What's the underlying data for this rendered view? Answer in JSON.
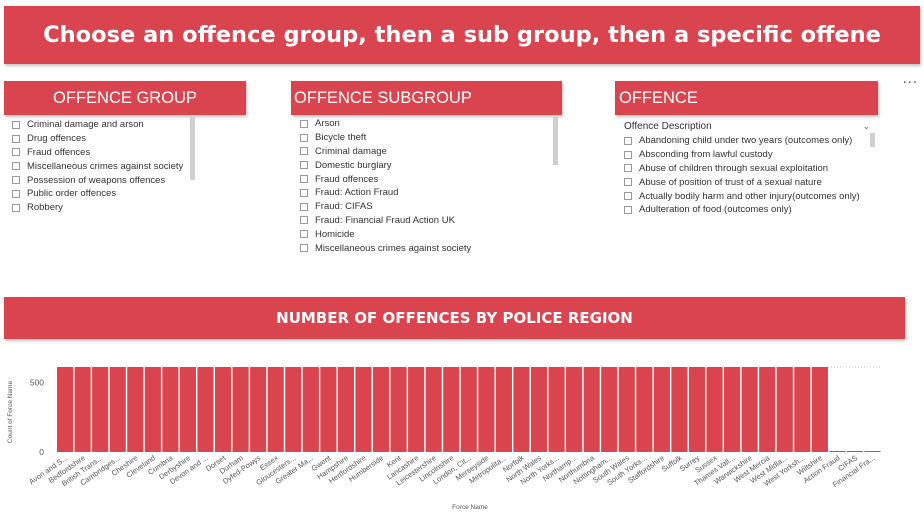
{
  "banner": {
    "title": "Choose an offence group, then a sub group, then a specific offene"
  },
  "more_options": "...",
  "offence_group": {
    "header": "OFFENCE GROUP",
    "items": [
      "Criminal damage and arson",
      "Drug offences",
      "Fraud offences",
      "Miscellaneous crimes against society",
      "Possession of weapons offences",
      "Public order offences",
      "Robbery"
    ]
  },
  "offence_subgroup": {
    "header": "OFFENCE SUBGROUP",
    "items": [
      "Arson",
      "Bicycle theft",
      "Criminal damage",
      "Domestic burglary",
      "Fraud offences",
      "Fraud: Action Fraud",
      "Fraud: CIFAS",
      "Fraud: Financial Fraud Action UK",
      "Homicide",
      "Miscellaneous crimes against society"
    ]
  },
  "offence": {
    "header": "OFFENCE",
    "dropdown_label": "Offence Description",
    "dropdown_icon": "chevron-down-icon",
    "items": [
      "Abandoning child under two years (outcomes only)",
      "Absconding from lawful custody",
      "Abuse of children through sexual exploitation",
      "Abuse of position of trust of a sexual nature",
      "Actually bodily harm and other injury(outcomes only)",
      "Adulteration of food (outcomes only)"
    ]
  },
  "colors": {
    "accent": "#d9444f",
    "bar": "#d9444f",
    "white": "#ffffff"
  },
  "chart_title": "NUMBER OF OFFENCES BY POLICE REGION",
  "chart_data": {
    "type": "bar",
    "title": "NUMBER OF OFFENCES BY POLICE REGION",
    "xlabel": "Force Name",
    "ylabel": "Count of Force Name",
    "ylim": [
      0,
      660
    ],
    "yticks": [
      0,
      500
    ],
    "categories": [
      "Avon and S...",
      "Bedfordshire",
      "British Trans...",
      "Cambridges...",
      "Cheshire",
      "Cleveland",
      "Cumbria",
      "Derbyshire",
      "Devon and ...",
      "Dorset",
      "Durham",
      "Dyfed-Powys",
      "Essex",
      "Gloucesters...",
      "Greater Ma...",
      "Gwent",
      "Hampshire",
      "Hertfordshire",
      "Humberside",
      "Kent",
      "Lancashire",
      "Leicestershire",
      "Lincolnshire",
      "London, Cit...",
      "Merseyside",
      "Metropolita...",
      "Norfolk",
      "North Wales",
      "North Yorks...",
      "Northamp...",
      "Northumbria",
      "Nottingham...",
      "South Wales",
      "South Yorks...",
      "Staffordshire",
      "Suffolk",
      "Surrey",
      "Sussex",
      "Thames Vall...",
      "Warwickshire",
      "West Mercia",
      "West Midla...",
      "West Yorksh...",
      "Wiltshire",
      "Action Fraud",
      "CIFAS",
      "Financial Fra..."
    ],
    "values": [
      610,
      610,
      610,
      610,
      610,
      610,
      610,
      610,
      610,
      610,
      610,
      610,
      610,
      610,
      610,
      610,
      610,
      610,
      610,
      610,
      610,
      610,
      610,
      610,
      610,
      610,
      610,
      610,
      610,
      610,
      610,
      610,
      610,
      610,
      610,
      610,
      610,
      610,
      610,
      610,
      610,
      610,
      610,
      610,
      2,
      2,
      2
    ],
    "grid": false
  }
}
